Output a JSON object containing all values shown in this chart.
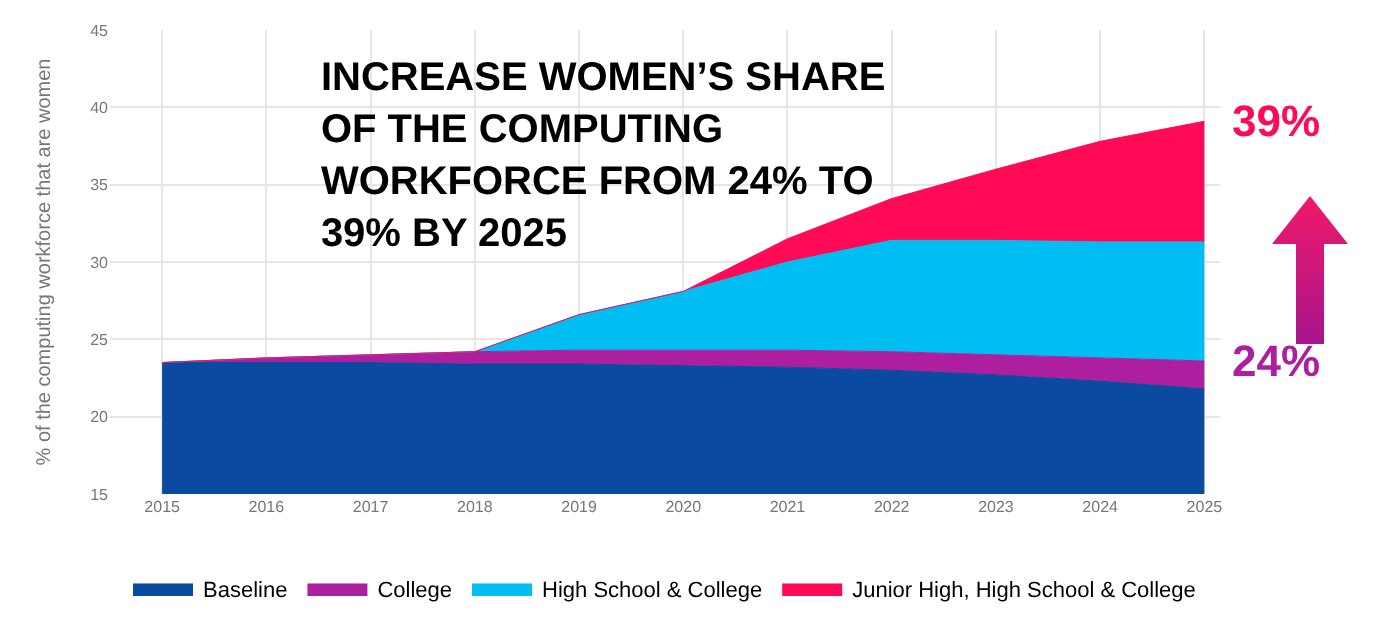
{
  "chart_data": {
    "type": "area",
    "title": "INCREASE WOMEN’S SHARE OF THE COMPUTING WORKFORCE FROM 24% TO 39% BY 2025",
    "ylabel": "% of the computing workforce that are women",
    "x": [
      2015,
      2016,
      2017,
      2018,
      2019,
      2020,
      2021,
      2022,
      2023,
      2024,
      2025
    ],
    "series": [
      {
        "name": "Baseline",
        "color": "#0a4aa0",
        "values": [
          23.5,
          23.5,
          23.5,
          23.4,
          23.4,
          23.3,
          23.2,
          23.0,
          22.7,
          22.3,
          21.8
        ]
      },
      {
        "name": "College",
        "color": "#ae1fa0",
        "values": [
          23.5,
          23.8,
          24.0,
          24.2,
          24.3,
          24.3,
          24.3,
          24.2,
          24.0,
          23.8,
          23.6
        ]
      },
      {
        "name": "High School & College",
        "color": "#00bdf2",
        "values": [
          23.5,
          23.8,
          24.0,
          24.2,
          26.6,
          28.1,
          30.0,
          31.4,
          31.4,
          31.3,
          31.3
        ]
      },
      {
        "name": "Junior High, High School & College",
        "color": "#ff0a57",
        "values": [
          23.5,
          23.8,
          24.0,
          24.2,
          26.6,
          28.1,
          31.5,
          34.1,
          36.0,
          37.8,
          39.1
        ]
      }
    ],
    "xlim": [
      2014.5,
      2025.15
    ],
    "xticks": [
      2015,
      2016,
      2017,
      2018,
      2019,
      2020,
      2021,
      2022,
      2023,
      2024,
      2025
    ],
    "ylim": [
      15,
      45
    ],
    "yticks": [
      15,
      20,
      25,
      30,
      35,
      40,
      45
    ],
    "grid": true,
    "legend": "bottom",
    "annotations": [
      {
        "text": "39%",
        "x": 2025,
        "y": 39.1
      },
      {
        "text": "24%",
        "x": 2025,
        "y": 23.6
      }
    ]
  }
}
